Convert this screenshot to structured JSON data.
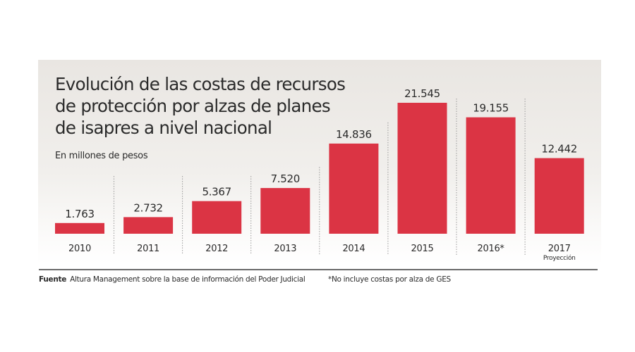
{
  "chart_data": {
    "type": "bar",
    "title": "Evolución de las costas de recursos de protección por alzas de planes de isapres a nivel nacional",
    "title_lines": [
      "Evolución de las costas de recursos",
      "de protección por alzas de planes",
      "de isapres a nivel nacional"
    ],
    "subtitle": "En millones de pesos",
    "categories": [
      "2010",
      "2011",
      "2012",
      "2013",
      "2014",
      "2015",
      "2016*",
      "2017"
    ],
    "category_notes": [
      "",
      "",
      "",
      "",
      "",
      "",
      "",
      "Proyección"
    ],
    "values": [
      1763,
      2732,
      5367,
      7520,
      14836,
      21545,
      19155,
      12442
    ],
    "value_labels": [
      "1.763",
      "2.732",
      "5.367",
      "7.520",
      "14.836",
      "21.545",
      "19.155",
      "12.442"
    ],
    "xlabel": "",
    "ylabel": "En millones de pesos",
    "ylim": [
      0,
      21545
    ],
    "grid": false,
    "legend": "none",
    "bar_color": "#db3444"
  },
  "footer": {
    "source_label": "Fuente",
    "source_text": "Altura Management sobre la base de información del Poder Judicial",
    "note": "*No incluye costas por alza de GES"
  }
}
